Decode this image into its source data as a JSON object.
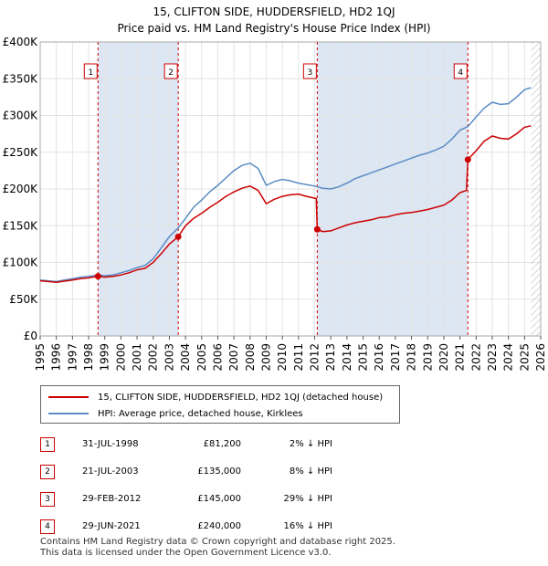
{
  "title_line1": "15, CLIFTON SIDE, HUDDERSFIELD, HD2 1QJ",
  "title_line2": "Price paid vs. HM Land Registry's House Price Index (HPI)",
  "colors": {
    "property": "#cc0000",
    "hpi": "#5b8cc4",
    "shade": "#dde6f3",
    "marker": "#cc0000"
  },
  "legend": {
    "property": "15, CLIFTON SIDE, HUDDERSFIELD, HD2 1QJ (detached house)",
    "hpi": "HPI: Average price, detached house, Kirklees"
  },
  "transactions": [
    {
      "num": "1",
      "date": "31-JUL-1998",
      "price": "£81,200",
      "hpi": "2% ↓ HPI"
    },
    {
      "num": "2",
      "date": "21-JUL-2003",
      "price": "£135,000",
      "hpi": "8% ↓ HPI"
    },
    {
      "num": "3",
      "date": "29-FEB-2012",
      "price": "£145,000",
      "hpi": "29% ↓ HPI"
    },
    {
      "num": "4",
      "date": "29-JUN-2021",
      "price": "£240,000",
      "hpi": "16% ↓ HPI"
    }
  ],
  "footer_line1": "Contains HM Land Registry data © Crown copyright and database right 2025.",
  "footer_line2": "This data is licensed under the Open Government Licence v3.0.",
  "chart_data": {
    "type": "line",
    "title": "15, CLIFTON SIDE, HUDDERSFIELD, HD2 1QJ — Price paid vs. HM Land Registry's House Price Index (HPI)",
    "xlim": [
      1995,
      2026
    ],
    "ylim": [
      0,
      400000
    ],
    "x_ticks": [
      "1995",
      "1996",
      "1997",
      "1998",
      "1999",
      "2000",
      "2001",
      "2002",
      "2003",
      "2004",
      "2005",
      "2006",
      "2007",
      "2008",
      "2009",
      "2010",
      "2011",
      "2012",
      "2013",
      "2014",
      "2015",
      "2016",
      "2017",
      "2018",
      "2019",
      "2020",
      "2021",
      "2022",
      "2023",
      "2024",
      "2025",
      "2026"
    ],
    "y_ticks": [
      {
        "value": 0,
        "label": "£0"
      },
      {
        "value": 50000,
        "label": "£50K"
      },
      {
        "value": 100000,
        "label": "£100K"
      },
      {
        "value": 150000,
        "label": "£150K"
      },
      {
        "value": 200000,
        "label": "£200K"
      },
      {
        "value": 250000,
        "label": "£250K"
      },
      {
        "value": 300000,
        "label": "£300K"
      },
      {
        "value": 350000,
        "label": "£350K"
      },
      {
        "value": 400000,
        "label": "£400K"
      }
    ],
    "sale_markers": [
      {
        "label": "1",
        "x": 1998.58,
        "y": 81200
      },
      {
        "label": "2",
        "x": 2003.55,
        "y": 135000
      },
      {
        "label": "3",
        "x": 2012.16,
        "y": 145000
      },
      {
        "label": "4",
        "x": 2021.49,
        "y": 240000
      }
    ],
    "series": [
      {
        "name": "15, CLIFTON SIDE, HUDDERSFIELD, HD2 1QJ (detached house)",
        "points": [
          [
            1995,
            75000
          ],
          [
            1995.5,
            74000
          ],
          [
            1996,
            73000
          ],
          [
            1996.5,
            74500
          ],
          [
            1997,
            76000
          ],
          [
            1997.5,
            78000
          ],
          [
            1998,
            79000
          ],
          [
            1998.58,
            81200
          ],
          [
            1999,
            80000
          ],
          [
            1999.5,
            81000
          ],
          [
            2000,
            83000
          ],
          [
            2000.5,
            86000
          ],
          [
            2001,
            90000
          ],
          [
            2001.5,
            92000
          ],
          [
            2002,
            100000
          ],
          [
            2002.5,
            112000
          ],
          [
            2003,
            125000
          ],
          [
            2003.55,
            135000
          ],
          [
            2004,
            150000
          ],
          [
            2004.5,
            160000
          ],
          [
            2005,
            167000
          ],
          [
            2005.5,
            175000
          ],
          [
            2006,
            182000
          ],
          [
            2006.5,
            190000
          ],
          [
            2007,
            196000
          ],
          [
            2007.5,
            201000
          ],
          [
            2008,
            204000
          ],
          [
            2008.5,
            198000
          ],
          [
            2009,
            180000
          ],
          [
            2009.5,
            186000
          ],
          [
            2010,
            190000
          ],
          [
            2010.5,
            192000
          ],
          [
            2011,
            193000
          ],
          [
            2011.5,
            190000
          ],
          [
            2012.1,
            187000
          ],
          [
            2012.16,
            145000
          ],
          [
            2012.5,
            142000
          ],
          [
            2013,
            143000
          ],
          [
            2013.5,
            147000
          ],
          [
            2014,
            151000
          ],
          [
            2014.5,
            154000
          ],
          [
            2015,
            156000
          ],
          [
            2015.5,
            158000
          ],
          [
            2016,
            161000
          ],
          [
            2016.5,
            162000
          ],
          [
            2017,
            165000
          ],
          [
            2017.5,
            167000
          ],
          [
            2018,
            168000
          ],
          [
            2018.5,
            170000
          ],
          [
            2019,
            172000
          ],
          [
            2019.5,
            175000
          ],
          [
            2020,
            178000
          ],
          [
            2020.5,
            185000
          ],
          [
            2021,
            195000
          ],
          [
            2021.4,
            198000
          ],
          [
            2021.49,
            240000
          ],
          [
            2022,
            252000
          ],
          [
            2022.5,
            265000
          ],
          [
            2023,
            272000
          ],
          [
            2023.5,
            269000
          ],
          [
            2024,
            268000
          ],
          [
            2024.5,
            275000
          ],
          [
            2025,
            284000
          ],
          [
            2025.4,
            286000
          ]
        ]
      },
      {
        "name": "HPI: Average price, detached house, Kirklees",
        "points": [
          [
            1995,
            76000
          ],
          [
            1995.5,
            75000
          ],
          [
            1996,
            74000
          ],
          [
            1996.5,
            76000
          ],
          [
            1997,
            78000
          ],
          [
            1997.5,
            80000
          ],
          [
            1998,
            81000
          ],
          [
            1998.58,
            82800
          ],
          [
            1999,
            82000
          ],
          [
            1999.5,
            83000
          ],
          [
            2000,
            86000
          ],
          [
            2000.5,
            89000
          ],
          [
            2001,
            93000
          ],
          [
            2001.5,
            96000
          ],
          [
            2002,
            105000
          ],
          [
            2002.5,
            120000
          ],
          [
            2003,
            135000
          ],
          [
            2003.55,
            147000
          ],
          [
            2004,
            160000
          ],
          [
            2004.5,
            175000
          ],
          [
            2005,
            185000
          ],
          [
            2005.5,
            196000
          ],
          [
            2006,
            205000
          ],
          [
            2006.5,
            215000
          ],
          [
            2007,
            225000
          ],
          [
            2007.5,
            232000
          ],
          [
            2008,
            235000
          ],
          [
            2008.5,
            228000
          ],
          [
            2009,
            205000
          ],
          [
            2009.5,
            210000
          ],
          [
            2010,
            213000
          ],
          [
            2010.5,
            211000
          ],
          [
            2011,
            208000
          ],
          [
            2011.5,
            206000
          ],
          [
            2012,
            204000
          ],
          [
            2012.5,
            201000
          ],
          [
            2013,
            200000
          ],
          [
            2013.5,
            203000
          ],
          [
            2014,
            208000
          ],
          [
            2014.5,
            214000
          ],
          [
            2015,
            218000
          ],
          [
            2015.5,
            222000
          ],
          [
            2016,
            226000
          ],
          [
            2016.5,
            230000
          ],
          [
            2017,
            234000
          ],
          [
            2017.5,
            238000
          ],
          [
            2018,
            242000
          ],
          [
            2018.5,
            246000
          ],
          [
            2019,
            249000
          ],
          [
            2019.5,
            253000
          ],
          [
            2020,
            258000
          ],
          [
            2020.5,
            268000
          ],
          [
            2021,
            280000
          ],
          [
            2021.49,
            285000
          ],
          [
            2022,
            298000
          ],
          [
            2022.5,
            310000
          ],
          [
            2023,
            318000
          ],
          [
            2023.5,
            315000
          ],
          [
            2024,
            316000
          ],
          [
            2024.5,
            325000
          ],
          [
            2025,
            335000
          ],
          [
            2025.4,
            338000
          ]
        ]
      }
    ]
  }
}
